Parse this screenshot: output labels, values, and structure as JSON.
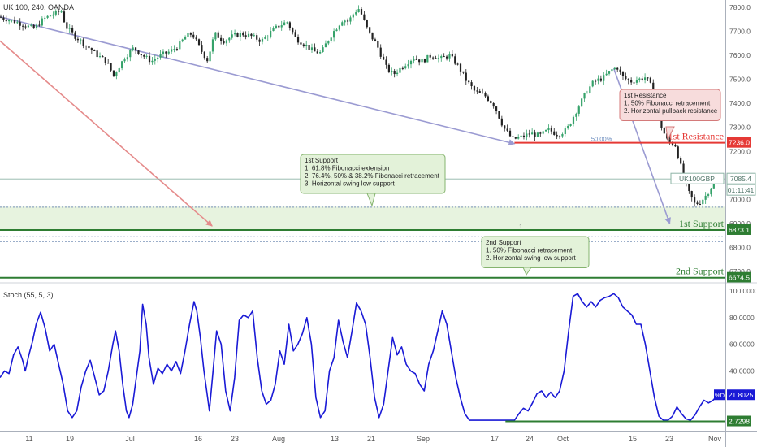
{
  "header": {
    "symbol_info": "UK 100, 240, OANDA"
  },
  "chart_data": [
    {
      "type": "candlestick",
      "title": "UK 100, 240, OANDA",
      "y_ticks": [
        "7800.0",
        "7700.0",
        "7600.0",
        "7500.0",
        "7400.0",
        "7300.0",
        "7200.0",
        "7100.0",
        "7000.0",
        "6900.0",
        "6800.0",
        "6700.0"
      ],
      "ylim": [
        6660,
        7830
      ],
      "x_ticks": [
        "11",
        "19",
        "Jul",
        "16",
        "23",
        "Aug",
        "13",
        "21",
        "Sep",
        "17",
        "24",
        "Oct",
        "15",
        "23",
        "Nov"
      ],
      "price_path": [
        [
          0,
          7760
        ],
        [
          15,
          7745
        ],
        [
          30,
          7725
        ],
        [
          40,
          7710
        ],
        [
          50,
          7750
        ],
        [
          60,
          7770
        ],
        [
          70,
          7785
        ],
        [
          75,
          7720
        ],
        [
          85,
          7680
        ],
        [
          95,
          7650
        ],
        [
          110,
          7600
        ],
        [
          120,
          7575
        ],
        [
          128,
          7515
        ],
        [
          140,
          7590
        ],
        [
          150,
          7630
        ],
        [
          160,
          7600
        ],
        [
          170,
          7575
        ],
        [
          180,
          7600
        ],
        [
          190,
          7615
        ],
        [
          200,
          7640
        ],
        [
          208,
          7680
        ],
        [
          215,
          7690
        ],
        [
          225,
          7620
        ],
        [
          232,
          7580
        ],
        [
          240,
          7690
        ],
        [
          250,
          7660
        ],
        [
          260,
          7680
        ],
        [
          270,
          7690
        ],
        [
          280,
          7680
        ],
        [
          292,
          7660
        ],
        [
          300,
          7690
        ],
        [
          310,
          7720
        ],
        [
          320,
          7740
        ],
        [
          330,
          7670
        ],
        [
          340,
          7645
        ],
        [
          350,
          7615
        ],
        [
          358,
          7610
        ],
        [
          365,
          7660
        ],
        [
          372,
          7700
        ],
        [
          382,
          7750
        ],
        [
          388,
          7740
        ],
        [
          395,
          7780
        ],
        [
          400,
          7795
        ],
        [
          410,
          7700
        ],
        [
          420,
          7640
        ],
        [
          430,
          7550
        ],
        [
          438,
          7520
        ],
        [
          450,
          7560
        ],
        [
          460,
          7590
        ],
        [
          470,
          7575
        ],
        [
          480,
          7600
        ],
        [
          490,
          7585
        ],
        [
          500,
          7600
        ],
        [
          510,
          7555
        ],
        [
          518,
          7500
        ],
        [
          528,
          7450
        ],
        [
          540,
          7430
        ],
        [
          550,
          7390
        ],
        [
          560,
          7300
        ],
        [
          570,
          7250
        ],
        [
          580,
          7260
        ],
        [
          590,
          7275
        ],
        [
          600,
          7265
        ],
        [
          610,
          7290
        ],
        [
          620,
          7270
        ],
        [
          630,
          7290
        ],
        [
          638,
          7350
        ],
        [
          645,
          7400
        ],
        [
          652,
          7450
        ],
        [
          660,
          7490
        ],
        [
          670,
          7505
        ],
        [
          680,
          7540
        ],
        [
          686,
          7550
        ],
        [
          692,
          7510
        ],
        [
          700,
          7490
        ],
        [
          710,
          7500
        ],
        [
          718,
          7510
        ],
        [
          725,
          7460
        ],
        [
          733,
          7320
        ],
        [
          742,
          7240
        ],
        [
          750,
          7230
        ],
        [
          757,
          7130
        ],
        [
          765,
          7030
        ],
        [
          772,
          6980
        ],
        [
          778,
          6990
        ],
        [
          785,
          7020
        ],
        [
          792,
          7065
        ],
        [
          795,
          7085
        ]
      ],
      "trendlines": [
        {
          "from": [
            0,
            7760
          ],
          "to": [
            570,
            7232
          ],
          "color": "#9b9bd2"
        },
        {
          "from": [
            0,
            7660
          ],
          "to": [
            235,
            6890
          ],
          "color": "#e58b8b"
        },
        {
          "from": [
            680,
            7545
          ],
          "to": [
            742,
            6900
          ],
          "color": "#9b9bd2"
        }
      ],
      "levels": [
        {
          "name": "resistance",
          "price": 7236.0,
          "label": "1st Resistance",
          "tag": "7236.0",
          "color": "#e53935"
        },
        {
          "name": "support-1",
          "price": 6873.1,
          "label": "1st Support",
          "tag": "6873.1",
          "color": "#2e7d32"
        },
        {
          "name": "support-2",
          "price": 6674.5,
          "label": "2nd Support",
          "tag": "6674.5",
          "color": "#2e7d32"
        }
      ],
      "fib_label": "50.00%",
      "fib_1_label": "1",
      "current": {
        "symbol": "UK100GBP",
        "price": "7085.4",
        "countdown": "01:11:41"
      },
      "support_zone": [
        6875,
        6970
      ],
      "dotted_lines": [
        6968,
        6845,
        6825
      ],
      "annotations": [
        {
          "name": "resistance-note",
          "title": "1st Resistance",
          "lines": [
            "1. 50% Fibonacci retracement",
            "2. Horizontal pullback resistance"
          ]
        },
        {
          "name": "support-note",
          "title": "1st Support",
          "lines": [
            "1. 61.8% Fibonacci extension",
            "2. 76.4%, 50% & 38.2% Fibonacci retracement",
            "3. Horizontal swing low support"
          ]
        },
        {
          "name": "support2-note",
          "title": "2nd Support",
          "lines": [
            "1. 50% Fibonacci retracement",
            "2. Horizontal swing low support"
          ]
        }
      ]
    },
    {
      "type": "line",
      "title": "Stoch (55, 5, 3)",
      "ylim": [
        0,
        100
      ],
      "y_ticks": [
        "100.0000",
        "80.0000",
        "60.0000",
        "40.0000"
      ],
      "current_tag": "21.8025",
      "current_prefix": "%D",
      "low_tag": "2.7298",
      "low_level": 2.7298,
      "series": [
        {
          "color": "#1a1ad6",
          "points": [
            [
              0,
              35
            ],
            [
              5,
              40
            ],
            [
              10,
              38
            ],
            [
              15,
              52
            ],
            [
              20,
              58
            ],
            [
              25,
              48
            ],
            [
              28,
              40
            ],
            [
              32,
              52
            ],
            [
              36,
              62
            ],
            [
              40,
              75
            ],
            [
              45,
              84
            ],
            [
              50,
              72
            ],
            [
              55,
              55
            ],
            [
              60,
              60
            ],
            [
              65,
              45
            ],
            [
              70,
              30
            ],
            [
              75,
              10
            ],
            [
              80,
              5
            ],
            [
              85,
              10
            ],
            [
              90,
              28
            ],
            [
              95,
              40
            ],
            [
              100,
              48
            ],
            [
              105,
              35
            ],
            [
              110,
              22
            ],
            [
              115,
              25
            ],
            [
              120,
              40
            ],
            [
              125,
              60
            ],
            [
              128,
              70
            ],
            [
              132,
              55
            ],
            [
              136,
              30
            ],
            [
              140,
              10
            ],
            [
              143,
              5
            ],
            [
              147,
              15
            ],
            [
              150,
              30
            ],
            [
              155,
              55
            ],
            [
              158,
              90
            ],
            [
              162,
              75
            ],
            [
              165,
              50
            ],
            [
              170,
              30
            ],
            [
              175,
              42
            ],
            [
              180,
              38
            ],
            [
              185,
              45
            ],
            [
              190,
              40
            ],
            [
              195,
              47
            ],
            [
              200,
              38
            ],
            [
              205,
              55
            ],
            [
              210,
              75
            ],
            [
              215,
              92
            ],
            [
              218,
              85
            ],
            [
              222,
              65
            ],
            [
              226,
              40
            ],
            [
              230,
              20
            ],
            [
              232,
              10
            ],
            [
              236,
              40
            ],
            [
              240,
              70
            ],
            [
              245,
              60
            ],
            [
              250,
              25
            ],
            [
              255,
              10
            ],
            [
              260,
              35
            ],
            [
              265,
              78
            ],
            [
              270,
              82
            ],
            [
              275,
              80
            ],
            [
              280,
              85
            ],
            [
              285,
              50
            ],
            [
              290,
              25
            ],
            [
              295,
              15
            ],
            [
              300,
              18
            ],
            [
              305,
              30
            ],
            [
              310,
              55
            ],
            [
              315,
              45
            ],
            [
              320,
              75
            ],
            [
              325,
              55
            ],
            [
              330,
              60
            ],
            [
              335,
              68
            ],
            [
              340,
              80
            ],
            [
              345,
              60
            ],
            [
              350,
              20
            ],
            [
              355,
              5
            ],
            [
              360,
              10
            ],
            [
              365,
              40
            ],
            [
              370,
              50
            ],
            [
              375,
              78
            ],
            [
              380,
              62
            ],
            [
              385,
              50
            ],
            [
              390,
              70
            ],
            [
              395,
              91
            ],
            [
              400,
              85
            ],
            [
              405,
              75
            ],
            [
              410,
              50
            ],
            [
              415,
              20
            ],
            [
              420,
              5
            ],
            [
              425,
              15
            ],
            [
              430,
              40
            ],
            [
              435,
              65
            ],
            [
              440,
              52
            ],
            [
              445,
              58
            ],
            [
              450,
              45
            ],
            [
              455,
              40
            ],
            [
              460,
              38
            ],
            [
              465,
              30
            ],
            [
              470,
              25
            ],
            [
              475,
              45
            ],
            [
              480,
              55
            ],
            [
              485,
              70
            ],
            [
              490,
              85
            ],
            [
              495,
              75
            ],
            [
              500,
              55
            ],
            [
              505,
              35
            ],
            [
              510,
              20
            ],
            [
              515,
              8
            ],
            [
              520,
              3
            ],
            [
              530,
              3
            ],
            [
              540,
              3
            ],
            [
              560,
              3
            ],
            [
              570,
              3
            ],
            [
              575,
              8
            ],
            [
              580,
              12
            ],
            [
              585,
              10
            ],
            [
              590,
              16
            ],
            [
              595,
              23
            ],
            [
              600,
              25
            ],
            [
              605,
              20
            ],
            [
              610,
              24
            ],
            [
              615,
              20
            ],
            [
              620,
              25
            ],
            [
              625,
              40
            ],
            [
              630,
              70
            ],
            [
              635,
              96
            ],
            [
              640,
              98
            ],
            [
              645,
              92
            ],
            [
              650,
              88
            ],
            [
              655,
              92
            ],
            [
              660,
              88
            ],
            [
              665,
              93
            ],
            [
              670,
              95
            ],
            [
              675,
              96
            ],
            [
              680,
              98
            ],
            [
              685,
              95
            ],
            [
              690,
              88
            ],
            [
              695,
              85
            ],
            [
              700,
              82
            ],
            [
              705,
              75
            ],
            [
              710,
              75
            ],
            [
              715,
              60
            ],
            [
              720,
              40
            ],
            [
              725,
              20
            ],
            [
              730,
              6
            ],
            [
              735,
              3
            ],
            [
              740,
              3
            ],
            [
              745,
              6
            ],
            [
              750,
              13
            ],
            [
              755,
              8
            ],
            [
              760,
              4
            ],
            [
              765,
              3
            ],
            [
              770,
              7
            ],
            [
              775,
              13
            ],
            [
              780,
              18
            ],
            [
              785,
              16
            ],
            [
              790,
              18
            ],
            [
              795,
              21.8
            ]
          ]
        }
      ]
    }
  ]
}
